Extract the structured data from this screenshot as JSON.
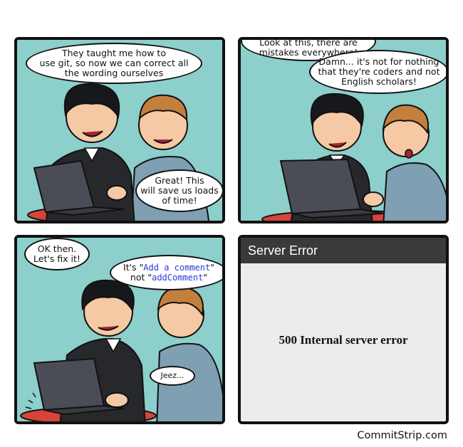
{
  "panels": {
    "p1": {
      "bubble_a": [
        "They taught me how to",
        "use git, so now we can correct all",
        "the wording ourselves"
      ],
      "bubble_b": [
        "Great! This",
        "will save us loads",
        "of time!"
      ]
    },
    "p2": {
      "bubble_a": [
        "Look at this, there are",
        "mistakes everywhere!"
      ],
      "bubble_b": [
        "Damn... it's not for nothing",
        "that they're coders and not",
        "English scholars!"
      ]
    },
    "p3": {
      "bubble_a": [
        "OK then.",
        "Let's fix it!"
      ],
      "bubble_b_prefix": "It's \"",
      "bubble_b_code1": "Add a comment",
      "bubble_b_mid": "\"",
      "bubble_b_line2_prefix": "not \"",
      "bubble_b_code2": "addComment",
      "bubble_b_suffix": "\"",
      "bubble_c": "Jeez..."
    },
    "p4": {
      "header": "Server Error",
      "message": "500 Internal server error"
    }
  },
  "credit": "CommitStrip.com",
  "colors": {
    "panel_bg": "#8ccfcb",
    "table": "#d8433a",
    "laptop": "#4a4d55",
    "shirt_dark": "#26282c",
    "shirt_blue": "#7f9fb3",
    "hair_dark": "#16181b",
    "hair_ginger": "#c57f3d",
    "skin": "#f4c9a4"
  }
}
